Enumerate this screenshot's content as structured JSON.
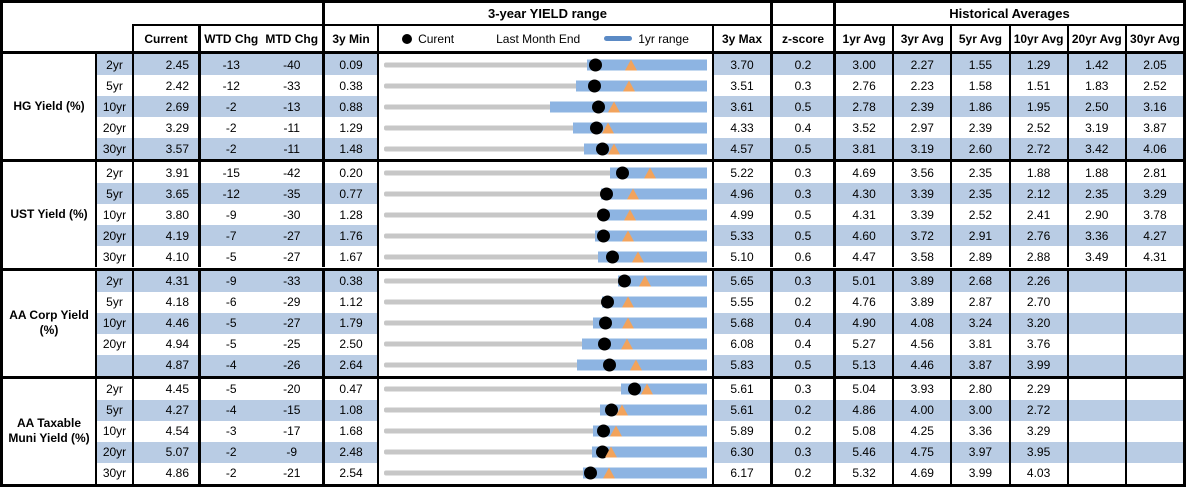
{
  "header": {
    "chart_section_title": "3-year YIELD range",
    "hist_section_title": "Historical Averages",
    "col_current": "Current",
    "col_wtd": "WTD Chg",
    "col_mtd": "MTD Chg",
    "col_3y_min": "3y Min",
    "col_3y_max": "3y Max",
    "col_zscore": "z-score",
    "avg_cols": [
      "1yr Avg",
      "3yr Avg",
      "5yr Avg",
      "10yr Avg",
      "20yr Avg",
      "30yr Avg"
    ],
    "legend": [
      {
        "icon": "current-dot",
        "label": "Curent"
      },
      {
        "icon": "last-month-end-triangle",
        "label": "Last Month End"
      },
      {
        "icon": "1yr-range-bar",
        "label": "1yr range"
      }
    ]
  },
  "colors": {
    "row_shade_blue": "#b9cce4",
    "range_bar_blue": "#8db4e2",
    "legend_bar_blue": "#5b8ac5",
    "track_gray": "#c7c7c7",
    "marker_orange": "#f2a35c",
    "dot_black": "#000000"
  },
  "chart_data": {
    "type": "table",
    "description": "Yield table with embedded 3-year range bullet charts; black dot = current, orange triangle = last month end, blue bar = 1yr range over gray 3y-range track",
    "columns": [
      "Current",
      "WTD Chg",
      "MTD Chg",
      "3y Min",
      "3y Max",
      "z-score",
      "1yr Avg",
      "3yr Avg",
      "5yr Avg",
      "10yr Avg",
      "20yr Avg",
      "30yr Avg"
    ],
    "groups": [
      {
        "label": "HG Yield (%)",
        "rows": [
          {
            "tenor": "2yr",
            "current": "2.45",
            "wtd_chg": "-13",
            "mtd_chg": "-40",
            "min_3y": "0.09",
            "max_3y": "3.70",
            "yr1_lo": 2.36,
            "yr1_hi": 3.7,
            "last_month_end": 2.85,
            "z_score": "0.2",
            "avgs": [
              "3.00",
              "2.27",
              "1.55",
              "1.29",
              "1.42",
              "2.05"
            ]
          },
          {
            "tenor": "5yr",
            "current": "2.42",
            "wtd_chg": "-12",
            "mtd_chg": "-33",
            "min_3y": "0.38",
            "max_3y": "3.51",
            "yr1_lo": 2.24,
            "yr1_hi": 3.51,
            "last_month_end": 2.75,
            "z_score": "0.3",
            "avgs": [
              "2.76",
              "2.23",
              "1.58",
              "1.51",
              "1.83",
              "2.52"
            ]
          },
          {
            "tenor": "10yr",
            "current": "2.69",
            "wtd_chg": "-2",
            "mtd_chg": "-13",
            "min_3y": "0.88",
            "max_3y": "3.61",
            "yr1_lo": 2.28,
            "yr1_hi": 3.61,
            "last_month_end": 2.82,
            "z_score": "0.5",
            "avgs": [
              "2.78",
              "2.39",
              "1.86",
              "1.95",
              "2.50",
              "3.16"
            ]
          },
          {
            "tenor": "20yr",
            "current": "3.29",
            "wtd_chg": "-2",
            "mtd_chg": "-11",
            "min_3y": "1.29",
            "max_3y": "4.33",
            "yr1_lo": 3.07,
            "yr1_hi": 4.33,
            "last_month_end": 3.4,
            "z_score": "0.4",
            "avgs": [
              "3.52",
              "2.97",
              "2.39",
              "2.52",
              "3.19",
              "3.87"
            ]
          },
          {
            "tenor": "30yr",
            "current": "3.57",
            "wtd_chg": "-2",
            "mtd_chg": "-11",
            "min_3y": "1.48",
            "max_3y": "4.57",
            "yr1_lo": 3.39,
            "yr1_hi": 4.57,
            "last_month_end": 3.68,
            "z_score": "0.5",
            "avgs": [
              "3.81",
              "3.19",
              "2.60",
              "2.72",
              "3.42",
              "4.06"
            ]
          }
        ]
      },
      {
        "label": "UST Yield (%)",
        "rows": [
          {
            "tenor": "2yr",
            "current": "3.91",
            "wtd_chg": "-15",
            "mtd_chg": "-42",
            "min_3y": "0.20",
            "max_3y": "5.22",
            "yr1_lo": 3.71,
            "yr1_hi": 5.22,
            "last_month_end": 4.33,
            "z_score": "0.3",
            "avgs": [
              "4.69",
              "3.56",
              "2.35",
              "1.88",
              "1.88",
              "2.81"
            ]
          },
          {
            "tenor": "5yr",
            "current": "3.65",
            "wtd_chg": "-12",
            "mtd_chg": "-35",
            "min_3y": "0.77",
            "max_3y": "4.96",
            "yr1_lo": 3.59,
            "yr1_hi": 4.96,
            "last_month_end": 4.0,
            "z_score": "0.3",
            "avgs": [
              "4.30",
              "3.39",
              "2.35",
              "2.12",
              "2.35",
              "3.29"
            ]
          },
          {
            "tenor": "10yr",
            "current": "3.80",
            "wtd_chg": "-9",
            "mtd_chg": "-30",
            "min_3y": "1.28",
            "max_3y": "4.99",
            "yr1_lo": 3.76,
            "yr1_hi": 4.99,
            "last_month_end": 4.1,
            "z_score": "0.5",
            "avgs": [
              "4.31",
              "3.39",
              "2.52",
              "2.41",
              "2.90",
              "3.78"
            ]
          },
          {
            "tenor": "20yr",
            "current": "4.19",
            "wtd_chg": "-7",
            "mtd_chg": "-27",
            "min_3y": "1.76",
            "max_3y": "5.33",
            "yr1_lo": 4.09,
            "yr1_hi": 5.33,
            "last_month_end": 4.46,
            "z_score": "0.5",
            "avgs": [
              "4.60",
              "3.72",
              "2.91",
              "2.76",
              "3.36",
              "4.27"
            ]
          },
          {
            "tenor": "30yr",
            "current": "4.10",
            "wtd_chg": "-5",
            "mtd_chg": "-27",
            "min_3y": "1.67",
            "max_3y": "5.10",
            "yr1_lo": 3.94,
            "yr1_hi": 5.1,
            "last_month_end": 4.37,
            "z_score": "0.6",
            "avgs": [
              "4.47",
              "3.58",
              "2.89",
              "2.88",
              "3.49",
              "4.31"
            ]
          }
        ]
      },
      {
        "label": "AA Corp Yield (%)",
        "rows": [
          {
            "tenor": "2yr",
            "current": "4.31",
            "wtd_chg": "-9",
            "mtd_chg": "-33",
            "min_3y": "0.38",
            "max_3y": "5.65",
            "yr1_lo": 4.19,
            "yr1_hi": 5.65,
            "last_month_end": 4.64,
            "z_score": "0.3",
            "avgs": [
              "5.01",
              "3.89",
              "2.68",
              "2.26",
              "",
              ""
            ]
          },
          {
            "tenor": "5yr",
            "current": "4.18",
            "wtd_chg": "-6",
            "mtd_chg": "-29",
            "min_3y": "1.12",
            "max_3y": "5.55",
            "yr1_lo": 4.11,
            "yr1_hi": 5.55,
            "last_month_end": 4.47,
            "z_score": "0.2",
            "avgs": [
              "4.76",
              "3.89",
              "2.87",
              "2.70",
              "",
              ""
            ]
          },
          {
            "tenor": "10yr",
            "current": "4.46",
            "wtd_chg": "-5",
            "mtd_chg": "-27",
            "min_3y": "1.79",
            "max_3y": "5.68",
            "yr1_lo": 4.31,
            "yr1_hi": 5.68,
            "last_month_end": 4.73,
            "z_score": "0.4",
            "avgs": [
              "4.90",
              "4.08",
              "3.24",
              "3.20",
              "",
              ""
            ]
          },
          {
            "tenor": "20yr",
            "current": "4.94",
            "wtd_chg": "-5",
            "mtd_chg": "-25",
            "min_3y": "2.50",
            "max_3y": "6.08",
            "yr1_lo": 4.7,
            "yr1_hi": 6.08,
            "last_month_end": 5.19,
            "z_score": "0.4",
            "avgs": [
              "5.27",
              "4.56",
              "3.81",
              "3.76",
              "",
              ""
            ]
          },
          {
            "tenor": "",
            "current": "4.87",
            "wtd_chg": "-4",
            "mtd_chg": "-26",
            "min_3y": "2.64",
            "max_3y": "5.83",
            "yr1_lo": 4.55,
            "yr1_hi": 5.83,
            "last_month_end": 5.13,
            "z_score": "0.5",
            "avgs": [
              "5.13",
              "4.46",
              "3.87",
              "3.99",
              "",
              ""
            ]
          }
        ]
      },
      {
        "label": "AA Taxable Muni Yield (%)",
        "rows": [
          {
            "tenor": "2yr",
            "current": "4.45",
            "wtd_chg": "-5",
            "mtd_chg": "-20",
            "min_3y": "0.47",
            "max_3y": "5.61",
            "yr1_lo": 4.24,
            "yr1_hi": 5.61,
            "last_month_end": 4.65,
            "z_score": "0.3",
            "avgs": [
              "5.04",
              "3.93",
              "2.80",
              "2.29",
              "",
              ""
            ]
          },
          {
            "tenor": "5yr",
            "current": "4.27",
            "wtd_chg": "-4",
            "mtd_chg": "-15",
            "min_3y": "1.08",
            "max_3y": "5.61",
            "yr1_lo": 4.11,
            "yr1_hi": 5.61,
            "last_month_end": 4.42,
            "z_score": "0.2",
            "avgs": [
              "4.86",
              "4.00",
              "3.00",
              "2.72",
              "",
              ""
            ]
          },
          {
            "tenor": "10yr",
            "current": "4.54",
            "wtd_chg": "-3",
            "mtd_chg": "-17",
            "min_3y": "1.68",
            "max_3y": "5.89",
            "yr1_lo": 4.41,
            "yr1_hi": 5.89,
            "last_month_end": 4.71,
            "z_score": "0.2",
            "avgs": [
              "5.08",
              "4.25",
              "3.36",
              "3.29",
              "",
              ""
            ]
          },
          {
            "tenor": "20yr",
            "current": "5.07",
            "wtd_chg": "-2",
            "mtd_chg": "-9",
            "min_3y": "2.48",
            "max_3y": "6.30",
            "yr1_lo": 4.94,
            "yr1_hi": 6.3,
            "last_month_end": 5.16,
            "z_score": "0.3",
            "avgs": [
              "5.46",
              "4.75",
              "3.97",
              "3.95",
              "",
              ""
            ]
          },
          {
            "tenor": "30yr",
            "current": "4.86",
            "wtd_chg": "-2",
            "mtd_chg": "-21",
            "min_3y": "2.54",
            "max_3y": "6.17",
            "yr1_lo": 4.78,
            "yr1_hi": 6.17,
            "last_month_end": 5.07,
            "z_score": "0.2",
            "avgs": [
              "5.32",
              "4.69",
              "3.99",
              "4.03",
              "",
              ""
            ]
          }
        ]
      }
    ]
  }
}
